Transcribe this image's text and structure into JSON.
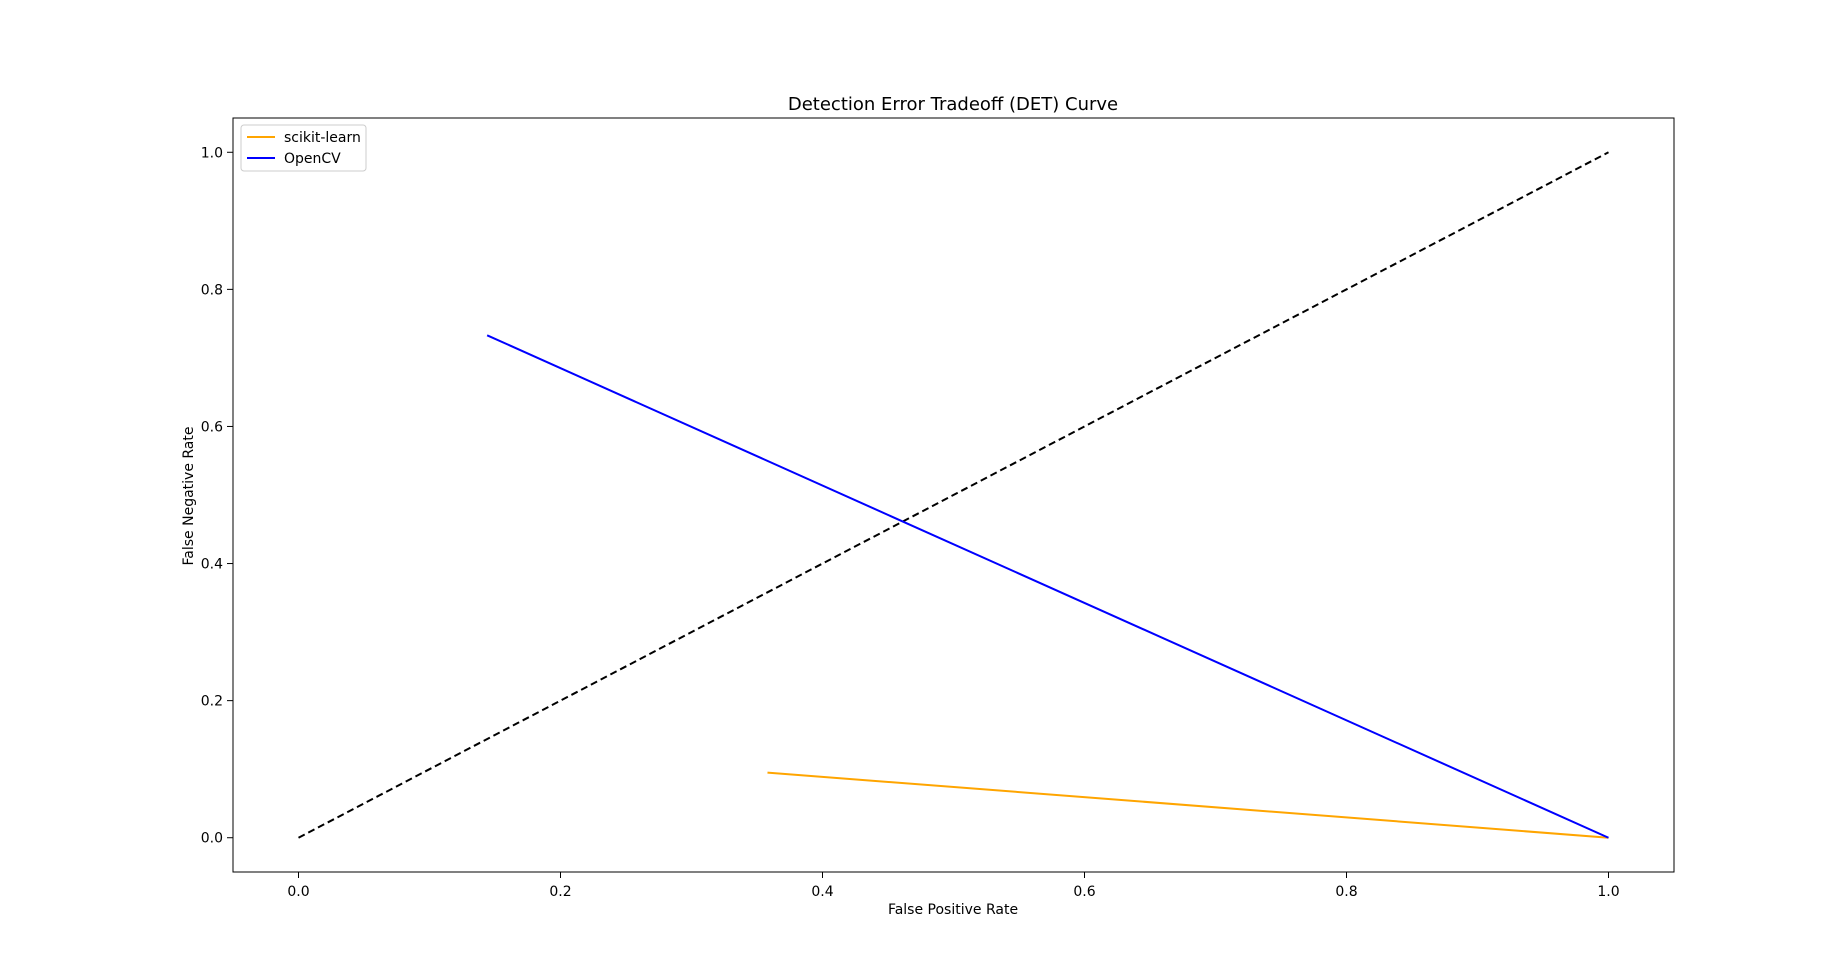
{
  "chart_data": {
    "type": "line",
    "title": "Detection Error Tradeoff (DET) Curve",
    "xlabel": "False Positive Rate",
    "ylabel": "False Negative Rate",
    "xlim": [
      -0.05,
      1.05
    ],
    "ylim": [
      -0.05,
      1.05
    ],
    "xticks": [
      0.0,
      0.2,
      0.4,
      0.6,
      0.8,
      1.0
    ],
    "yticks": [
      0.0,
      0.2,
      0.4,
      0.6,
      0.8,
      1.0
    ],
    "xtick_labels": [
      "0.0",
      "0.2",
      "0.4",
      "0.6",
      "0.8",
      "1.0"
    ],
    "ytick_labels": [
      "0.0",
      "0.2",
      "0.4",
      "0.6",
      "0.8",
      "1.0"
    ],
    "grid": false,
    "legend_position": "upper-left",
    "series": [
      {
        "name": "scikit-learn",
        "color": "#ffa500",
        "style": "solid",
        "x": [
          0.358,
          1.0
        ],
        "y": [
          0.095,
          0.0
        ]
      },
      {
        "name": "OpenCV",
        "color": "#0000ff",
        "style": "solid",
        "x": [
          0.144,
          1.0
        ],
        "y": [
          0.733,
          0.0
        ]
      }
    ],
    "reference_line": {
      "color": "#000000",
      "style": "dashed",
      "x": [
        0.0,
        1.0
      ],
      "y": [
        0.0,
        1.0
      ]
    }
  }
}
